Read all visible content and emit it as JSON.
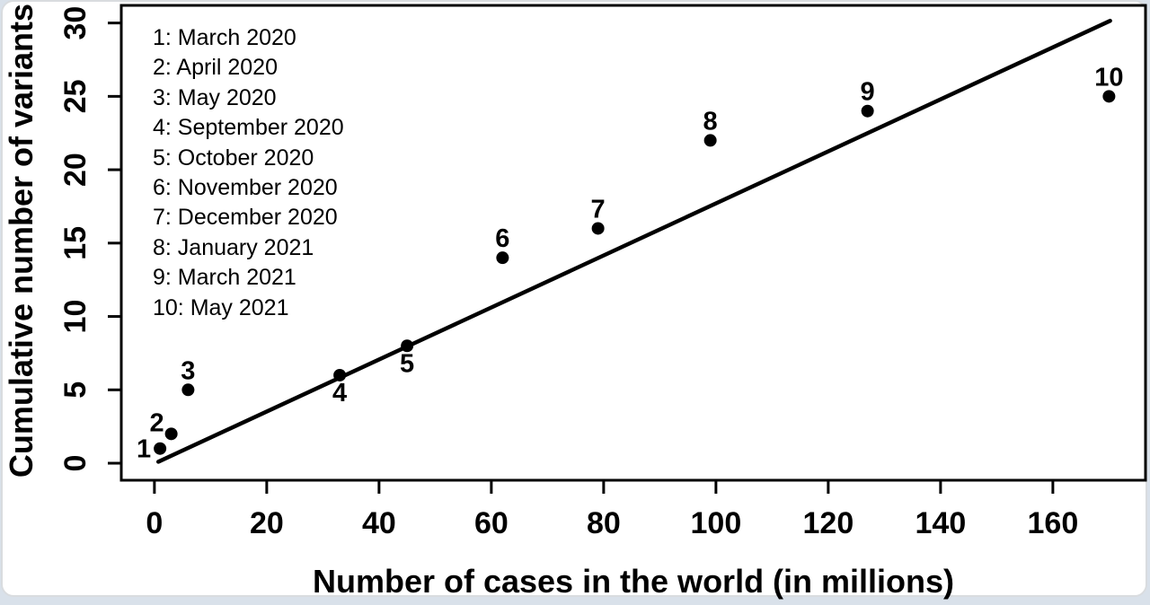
{
  "page": {
    "background": "#d9e1ea",
    "card_background": "#ffffff",
    "card_border": "#d9dcdf",
    "ink_color": "#000000"
  },
  "chart_data": {
    "type": "scatter",
    "title": "",
    "xlabel": "Number of cases in the world (in millions)",
    "ylabel": "Cumulative number of variants",
    "xlim": [
      -5.9,
      176.5
    ],
    "ylim": [
      -1.16,
      31.2
    ],
    "x_ticks": [
      0,
      20,
      40,
      60,
      80,
      100,
      120,
      140,
      160
    ],
    "y_ticks": [
      0,
      5,
      10,
      15,
      20,
      25,
      30
    ],
    "grid": false,
    "legend_position": "top-left-inside",
    "point_color": "#000000",
    "line_color": "#000000",
    "points": [
      {
        "n": "1",
        "month": "March 2020",
        "x": 1,
        "y": 1,
        "label_pos": "left"
      },
      {
        "n": "2",
        "month": "April 2020",
        "x": 3,
        "y": 2,
        "label_pos": "upleft"
      },
      {
        "n": "3",
        "month": "May 2020",
        "x": 6,
        "y": 5,
        "label_pos": "above"
      },
      {
        "n": "4",
        "month": "September 2020",
        "x": 33,
        "y": 6,
        "label_pos": "below"
      },
      {
        "n": "5",
        "month": "October 2020",
        "x": 45,
        "y": 8,
        "label_pos": "below"
      },
      {
        "n": "6",
        "month": "November 2020",
        "x": 62,
        "y": 14,
        "label_pos": "above"
      },
      {
        "n": "7",
        "month": "December 2020",
        "x": 79,
        "y": 16,
        "label_pos": "above"
      },
      {
        "n": "8",
        "month": "January 2021",
        "x": 99,
        "y": 22,
        "label_pos": "above"
      },
      {
        "n": "9",
        "month": "March 2021",
        "x": 127,
        "y": 24,
        "label_pos": "above"
      },
      {
        "n": "10",
        "month": "May 2021",
        "x": 170,
        "y": 25,
        "label_pos": "above"
      }
    ],
    "trend_line": {
      "x1": 0.7,
      "y1": 0.1,
      "x2": 170.2,
      "y2": 30.15
    }
  }
}
